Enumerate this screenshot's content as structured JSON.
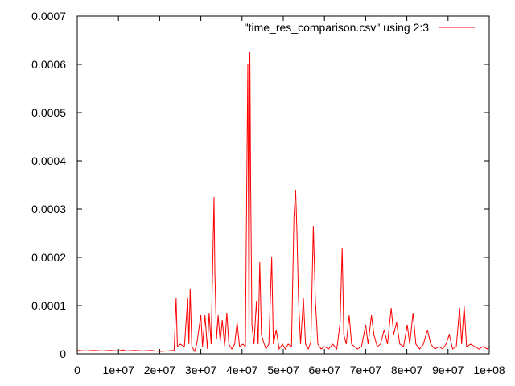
{
  "chart_data": {
    "type": "line",
    "title": "",
    "xlabel": "",
    "ylabel": "",
    "xlim": [
      0,
      100000000
    ],
    "ylim": [
      0,
      0.0007
    ],
    "grid": false,
    "legend_position": "top-right",
    "x_ticks": [
      {
        "value": 0,
        "label": "0"
      },
      {
        "value": 10000000,
        "label": "1e+07"
      },
      {
        "value": 20000000,
        "label": "2e+07"
      },
      {
        "value": 30000000,
        "label": "3e+07"
      },
      {
        "value": 40000000,
        "label": "4e+07"
      },
      {
        "value": 50000000,
        "label": "5e+07"
      },
      {
        "value": 60000000,
        "label": "6e+07"
      },
      {
        "value": 70000000,
        "label": "7e+07"
      },
      {
        "value": 80000000,
        "label": "8e+07"
      },
      {
        "value": 90000000,
        "label": "9e+07"
      },
      {
        "value": 100000000,
        "label": "1e+08"
      }
    ],
    "y_ticks": [
      {
        "value": 0,
        "label": "0"
      },
      {
        "value": 0.0001,
        "label": "0.0001"
      },
      {
        "value": 0.0002,
        "label": "0.0002"
      },
      {
        "value": 0.0003,
        "label": "0.0003"
      },
      {
        "value": 0.0004,
        "label": "0.0004"
      },
      {
        "value": 0.0005,
        "label": "0.0005"
      },
      {
        "value": 0.0006,
        "label": "0.0006"
      },
      {
        "value": 0.0007,
        "label": "0.0007"
      }
    ],
    "series": [
      {
        "name": "\"time_res_comparison.csv\" using 2:3",
        "color": "#ff0000",
        "points": [
          [
            0,
            7e-06
          ],
          [
            2000000,
            6e-06
          ],
          [
            4000000,
            7e-06
          ],
          [
            6000000,
            6e-06
          ],
          [
            8000000,
            7e-06
          ],
          [
            10000000,
            6e-06
          ],
          [
            11000000,
            8e-06
          ],
          [
            12000000,
            6e-06
          ],
          [
            14000000,
            7e-06
          ],
          [
            16000000,
            6e-06
          ],
          [
            18000000,
            7e-06
          ],
          [
            20000000,
            5e-06
          ],
          [
            22000000,
            6e-06
          ],
          [
            23500000,
            7e-06
          ],
          [
            24000000,
            0.000115
          ],
          [
            24300000,
            1.5e-05
          ],
          [
            25000000,
            2e-05
          ],
          [
            26000000,
            1.5e-05
          ],
          [
            26800000,
            0.000115
          ],
          [
            27100000,
            2e-05
          ],
          [
            27400000,
            0.000135
          ],
          [
            27800000,
            1.5e-05
          ],
          [
            28500000,
            5e-06
          ],
          [
            29000000,
            2e-05
          ],
          [
            30000000,
            8e-05
          ],
          [
            30400000,
            1.5e-05
          ],
          [
            31000000,
            8e-05
          ],
          [
            31600000,
            1e-05
          ],
          [
            32000000,
            8.5e-05
          ],
          [
            32500000,
            2e-05
          ],
          [
            33200000,
            0.000325
          ],
          [
            33400000,
            0.00017
          ],
          [
            33800000,
            3e-05
          ],
          [
            34200000,
            8e-05
          ],
          [
            34700000,
            2.5e-05
          ],
          [
            35200000,
            7e-05
          ],
          [
            35800000,
            1.5e-05
          ],
          [
            36300000,
            8.5e-05
          ],
          [
            36800000,
            2e-05
          ],
          [
            37500000,
            1e-05
          ],
          [
            38200000,
            2e-05
          ],
          [
            38800000,
            6.5e-05
          ],
          [
            39400000,
            1.5e-05
          ],
          [
            40200000,
            2e-05
          ],
          [
            40800000,
            1.5e-05
          ],
          [
            41400000,
            0.0006
          ],
          [
            41700000,
            3e-05
          ],
          [
            41900000,
            0.000625
          ],
          [
            42100000,
            0.000345
          ],
          [
            42400000,
            6e-05
          ],
          [
            42900000,
            2e-05
          ],
          [
            43500000,
            0.00011
          ],
          [
            43900000,
            2e-05
          ],
          [
            44300000,
            0.00019
          ],
          [
            44700000,
            4e-05
          ],
          [
            45200000,
            2.5e-05
          ],
          [
            45800000,
            1e-05
          ],
          [
            46500000,
            2e-05
          ],
          [
            47200000,
            0.0002
          ],
          [
            47600000,
            2e-05
          ],
          [
            48300000,
            5e-05
          ],
          [
            49000000,
            1e-05
          ],
          [
            49800000,
            2e-05
          ],
          [
            50500000,
            1e-05
          ],
          [
            51200000,
            2e-05
          ],
          [
            52000000,
            1.5e-05
          ],
          [
            52600000,
            0.000285
          ],
          [
            53000000,
            0.00034
          ],
          [
            53300000,
            0.00026
          ],
          [
            53700000,
            0.000115
          ],
          [
            54200000,
            2e-05
          ],
          [
            54900000,
            0.000115
          ],
          [
            55400000,
            2e-05
          ],
          [
            56100000,
            1e-05
          ],
          [
            56700000,
            2.5e-05
          ],
          [
            57300000,
            0.000265
          ],
          [
            57800000,
            0.00011
          ],
          [
            58400000,
            2e-05
          ],
          [
            59200000,
            1e-05
          ],
          [
            60000000,
            1.5e-05
          ],
          [
            61000000,
            1e-05
          ],
          [
            62000000,
            2e-05
          ],
          [
            63000000,
            1e-05
          ],
          [
            63800000,
            6.5e-05
          ],
          [
            64300000,
            0.00022
          ],
          [
            64700000,
            4e-05
          ],
          [
            65300000,
            2e-05
          ],
          [
            66000000,
            8e-05
          ],
          [
            66600000,
            2e-05
          ],
          [
            67300000,
            1.5e-05
          ],
          [
            68000000,
            1e-05
          ],
          [
            69000000,
            1.5e-05
          ],
          [
            70000000,
            6e-05
          ],
          [
            70600000,
            2e-05
          ],
          [
            71400000,
            8e-05
          ],
          [
            72000000,
            4e-05
          ],
          [
            72800000,
            1.5e-05
          ],
          [
            73600000,
            2e-05
          ],
          [
            74500000,
            5e-05
          ],
          [
            75300000,
            2e-05
          ],
          [
            76200000,
            9.5e-05
          ],
          [
            76800000,
            4e-05
          ],
          [
            77500000,
            6.5e-05
          ],
          [
            78300000,
            2e-05
          ],
          [
            79200000,
            1.5e-05
          ],
          [
            80100000,
            6e-05
          ],
          [
            80700000,
            2e-05
          ],
          [
            81500000,
            8.5e-05
          ],
          [
            82200000,
            2e-05
          ],
          [
            83100000,
            1e-05
          ],
          [
            84000000,
            2e-05
          ],
          [
            85000000,
            5e-05
          ],
          [
            85800000,
            2e-05
          ],
          [
            86800000,
            1e-05
          ],
          [
            87800000,
            1.5e-05
          ],
          [
            88700000,
            1e-05
          ],
          [
            89500000,
            2e-05
          ],
          [
            90300000,
            4e-05
          ],
          [
            91100000,
            1e-05
          ],
          [
            92000000,
            1.5e-05
          ],
          [
            92800000,
            9.5e-05
          ],
          [
            93300000,
            2e-05
          ],
          [
            93900000,
            0.0001
          ],
          [
            94500000,
            1.5e-05
          ],
          [
            95500000,
            2e-05
          ],
          [
            96500000,
            1.5e-05
          ],
          [
            97500000,
            1e-05
          ],
          [
            98500000,
            1.5e-05
          ],
          [
            99500000,
            1e-05
          ],
          [
            100000000,
            1.5e-05
          ]
        ]
      }
    ]
  }
}
